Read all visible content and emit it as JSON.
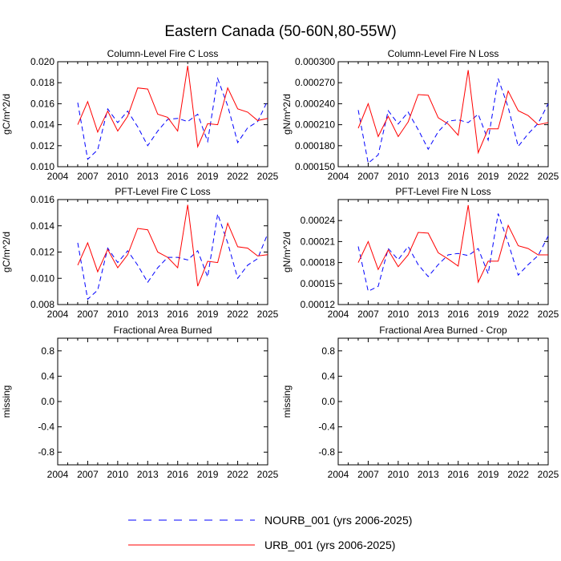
{
  "figure_title": "Eastern Canada (50-60N,80-55W)",
  "legend": {
    "entries": [
      {
        "label": "NOURB_001 (yrs 2006-2025)",
        "color": "#0000ff",
        "style": "dashed"
      },
      {
        "label": "URB_001 (yrs 2006-2025)",
        "color": "#ff0000",
        "style": "solid"
      }
    ]
  },
  "chart_data": [
    {
      "type": "line",
      "title": "Column-Level Fire C Loss",
      "ylabel": "gC/m^2/d",
      "xlabel": "",
      "xlim": [
        2004,
        2025
      ],
      "xticks": [
        "2004",
        "2007",
        "2010",
        "2013",
        "2016",
        "2019",
        "2022",
        "2025"
      ],
      "ylim": [
        0.01,
        0.02
      ],
      "yticks": [
        "0.010",
        "0.012",
        "0.014",
        "0.016",
        "0.018",
        "0.020"
      ],
      "x": [
        2006,
        2007,
        2008,
        2009,
        2010,
        2011,
        2012,
        2013,
        2014,
        2015,
        2016,
        2017,
        2018,
        2019,
        2020,
        2021,
        2022,
        2023,
        2024,
        2025
      ],
      "series": [
        {
          "name": "NOURB_001",
          "color": "#0000ff",
          "style": "dashed",
          "values": [
            0.0161,
            0.0107,
            0.0116,
            0.0155,
            0.0142,
            0.0153,
            0.0138,
            0.012,
            0.0134,
            0.0145,
            0.0146,
            0.0143,
            0.015,
            0.0124,
            0.0184,
            0.0158,
            0.0123,
            0.0137,
            0.0143,
            0.0163
          ]
        },
        {
          "name": "URB_001",
          "color": "#ff0000",
          "style": "solid",
          "values": [
            0.014,
            0.0162,
            0.0133,
            0.0153,
            0.0134,
            0.0148,
            0.0175,
            0.0174,
            0.015,
            0.0147,
            0.0134,
            0.0196,
            0.0119,
            0.0141,
            0.014,
            0.0175,
            0.0155,
            0.0152,
            0.0144,
            0.0146
          ]
        }
      ]
    },
    {
      "type": "line",
      "title": "Column-Level Fire N Loss",
      "ylabel": "gN/m^2/d",
      "xlabel": "",
      "xlim": [
        2004,
        2025
      ],
      "xticks": [
        "2004",
        "2007",
        "2010",
        "2013",
        "2016",
        "2019",
        "2022",
        "2025"
      ],
      "ylim": [
        0.00015,
        0.0003
      ],
      "yticks": [
        "0.000150",
        "0.000180",
        "0.000210",
        "0.000240",
        "0.000270",
        "0.000300"
      ],
      "x": [
        2006,
        2007,
        2008,
        2009,
        2010,
        2011,
        2012,
        2013,
        2014,
        2015,
        2016,
        2017,
        2018,
        2019,
        2020,
        2021,
        2022,
        2023,
        2024,
        2025
      ],
      "series": [
        {
          "name": "NOURB_001",
          "color": "#0000ff",
          "style": "dashed",
          "values": [
            0.000231,
            0.000155,
            0.000167,
            0.00023,
            0.000211,
            0.000228,
            0.000203,
            0.000175,
            0.0002,
            0.000215,
            0.000217,
            0.000213,
            0.000225,
            0.000188,
            0.000276,
            0.000235,
            0.000179,
            0.000197,
            0.000212,
            0.00024
          ]
        },
        {
          "name": "URB_001",
          "color": "#ff0000",
          "style": "solid",
          "values": [
            0.000205,
            0.00024,
            0.000193,
            0.000222,
            0.000193,
            0.000214,
            0.000253,
            0.000252,
            0.00022,
            0.000211,
            0.000195,
            0.000288,
            0.00017,
            0.000204,
            0.000204,
            0.000258,
            0.00023,
            0.000223,
            0.00021,
            0.000213
          ]
        }
      ]
    },
    {
      "type": "line",
      "title": "PFT-Level Fire C Loss",
      "ylabel": "gC/m^2/d",
      "xlabel": "",
      "xlim": [
        2004,
        2025
      ],
      "xticks": [
        "2004",
        "2007",
        "2010",
        "2013",
        "2016",
        "2019",
        "2022",
        "2025"
      ],
      "ylim": [
        0.008,
        0.016
      ],
      "yticks": [
        "0.008",
        "0.010",
        "0.012",
        "0.014",
        "0.016"
      ],
      "x": [
        2006,
        2007,
        2008,
        2009,
        2010,
        2011,
        2012,
        2013,
        2014,
        2015,
        2016,
        2017,
        2018,
        2019,
        2020,
        2021,
        2022,
        2023,
        2024,
        2025
      ],
      "series": [
        {
          "name": "NOURB_001",
          "color": "#0000ff",
          "style": "dashed",
          "values": [
            0.0127,
            0.0084,
            0.0091,
            0.0123,
            0.0112,
            0.0121,
            0.011,
            0.0097,
            0.0108,
            0.0116,
            0.0116,
            0.0114,
            0.0121,
            0.0101,
            0.0149,
            0.0127,
            0.01,
            0.011,
            0.0115,
            0.0134
          ]
        },
        {
          "name": "URB_001",
          "color": "#ff0000",
          "style": "solid",
          "values": [
            0.011,
            0.0127,
            0.0105,
            0.0122,
            0.0108,
            0.0118,
            0.0138,
            0.0137,
            0.012,
            0.0116,
            0.0108,
            0.0156,
            0.0094,
            0.0113,
            0.0112,
            0.0142,
            0.0124,
            0.0123,
            0.0117,
            0.0118
          ]
        }
      ]
    },
    {
      "type": "line",
      "title": "PFT-Level Fire N Loss",
      "ylabel": "gN/m^2/d",
      "xlabel": "",
      "xlim": [
        2004,
        2025
      ],
      "xticks": [
        "2004",
        "2007",
        "2010",
        "2013",
        "2016",
        "2019",
        "2022",
        "2025"
      ],
      "ylim": [
        0.00012,
        0.00027
      ],
      "yticks": [
        "0.00012",
        "0.00015",
        "0.00018",
        "0.00021",
        "0.00024"
      ],
      "x": [
        2006,
        2007,
        2008,
        2009,
        2010,
        2011,
        2012,
        2013,
        2014,
        2015,
        2016,
        2017,
        2018,
        2019,
        2020,
        2021,
        2022,
        2023,
        2024,
        2025
      ],
      "series": [
        {
          "name": "NOURB_001",
          "color": "#0000ff",
          "style": "dashed",
          "values": [
            0.000203,
            0.000139,
            0.000146,
            0.0002,
            0.000184,
            0.000203,
            0.000177,
            0.00016,
            0.000177,
            0.000191,
            0.000193,
            0.00019,
            0.0002,
            0.000164,
            0.00025,
            0.000208,
            0.000162,
            0.000177,
            0.00019,
            0.000218
          ]
        },
        {
          "name": "URB_001",
          "color": "#ff0000",
          "style": "solid",
          "values": [
            0.00018,
            0.00021,
            0.00017,
            0.000198,
            0.000174,
            0.000191,
            0.000223,
            0.000222,
            0.000194,
            0.000185,
            0.000175,
            0.000262,
            0.000152,
            0.000182,
            0.000182,
            0.000233,
            0.000204,
            0.0002,
            0.000191,
            0.000191
          ]
        }
      ]
    },
    {
      "type": "line",
      "title": "Fractional Area Burned",
      "ylabel": "missing",
      "xlabel": "",
      "xlim": [
        2004,
        2025
      ],
      "xticks": [
        "2004",
        "2007",
        "2010",
        "2013",
        "2016",
        "2019",
        "2022",
        "2025"
      ],
      "ylim": [
        -1.0,
        1.0
      ],
      "yticks": [
        "-0.8",
        "-0.4",
        "0.0",
        "0.4",
        "0.8"
      ],
      "ytick_values": [
        -0.8,
        -0.4,
        0.0,
        0.4,
        0.8
      ],
      "x": [],
      "series": []
    },
    {
      "type": "line",
      "title": "Fractional Area Burned - Crop",
      "ylabel": "missing",
      "xlabel": "",
      "xlim": [
        2004,
        2025
      ],
      "xticks": [
        "2004",
        "2007",
        "2010",
        "2013",
        "2016",
        "2019",
        "2022",
        "2025"
      ],
      "ylim": [
        -1.0,
        1.0
      ],
      "yticks": [
        "-0.8",
        "-0.4",
        "0.0",
        "0.4",
        "0.8"
      ],
      "ytick_values": [
        -0.8,
        -0.4,
        0.0,
        0.4,
        0.8
      ],
      "x": [],
      "series": []
    }
  ]
}
